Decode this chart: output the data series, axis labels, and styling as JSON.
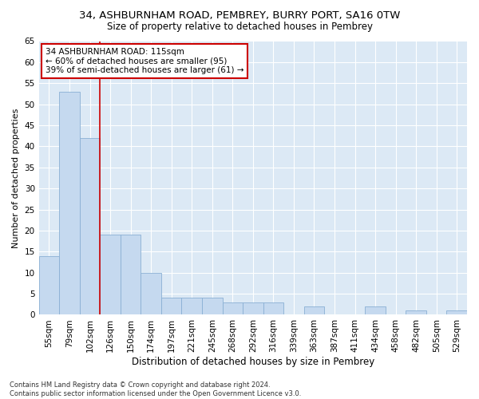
{
  "title1": "34, ASHBURNHAM ROAD, PEMBREY, BURRY PORT, SA16 0TW",
  "title2": "Size of property relative to detached houses in Pembrey",
  "xlabel": "Distribution of detached houses by size in Pembrey",
  "ylabel": "Number of detached properties",
  "categories": [
    "55sqm",
    "79sqm",
    "102sqm",
    "126sqm",
    "150sqm",
    "174sqm",
    "197sqm",
    "221sqm",
    "245sqm",
    "268sqm",
    "292sqm",
    "316sqm",
    "339sqm",
    "363sqm",
    "387sqm",
    "411sqm",
    "434sqm",
    "458sqm",
    "482sqm",
    "505sqm",
    "529sqm"
  ],
  "values": [
    14,
    53,
    42,
    19,
    19,
    10,
    4,
    4,
    4,
    3,
    3,
    3,
    0,
    2,
    0,
    0,
    2,
    0,
    1,
    0,
    1
  ],
  "bar_color": "#c5d9ef",
  "bar_edge_color": "#8ab0d4",
  "vline_x_index": 2.5,
  "vline_color": "#cc0000",
  "annotation_text": "34 ASHBURNHAM ROAD: 115sqm\n← 60% of detached houses are smaller (95)\n39% of semi-detached houses are larger (61) →",
  "annotation_box_color": "#ffffff",
  "annotation_box_edge": "#cc0000",
  "ylim": [
    0,
    65
  ],
  "yticks": [
    0,
    5,
    10,
    15,
    20,
    25,
    30,
    35,
    40,
    45,
    50,
    55,
    60,
    65
  ],
  "background_color": "#dce9f5",
  "grid_color": "#ffffff",
  "footnote": "Contains HM Land Registry data © Crown copyright and database right 2024.\nContains public sector information licensed under the Open Government Licence v3.0.",
  "title1_fontsize": 9.5,
  "title2_fontsize": 8.5,
  "xlabel_fontsize": 8.5,
  "ylabel_fontsize": 8,
  "tick_fontsize": 7.5,
  "annotation_fontsize": 7.5,
  "footnote_fontsize": 6
}
